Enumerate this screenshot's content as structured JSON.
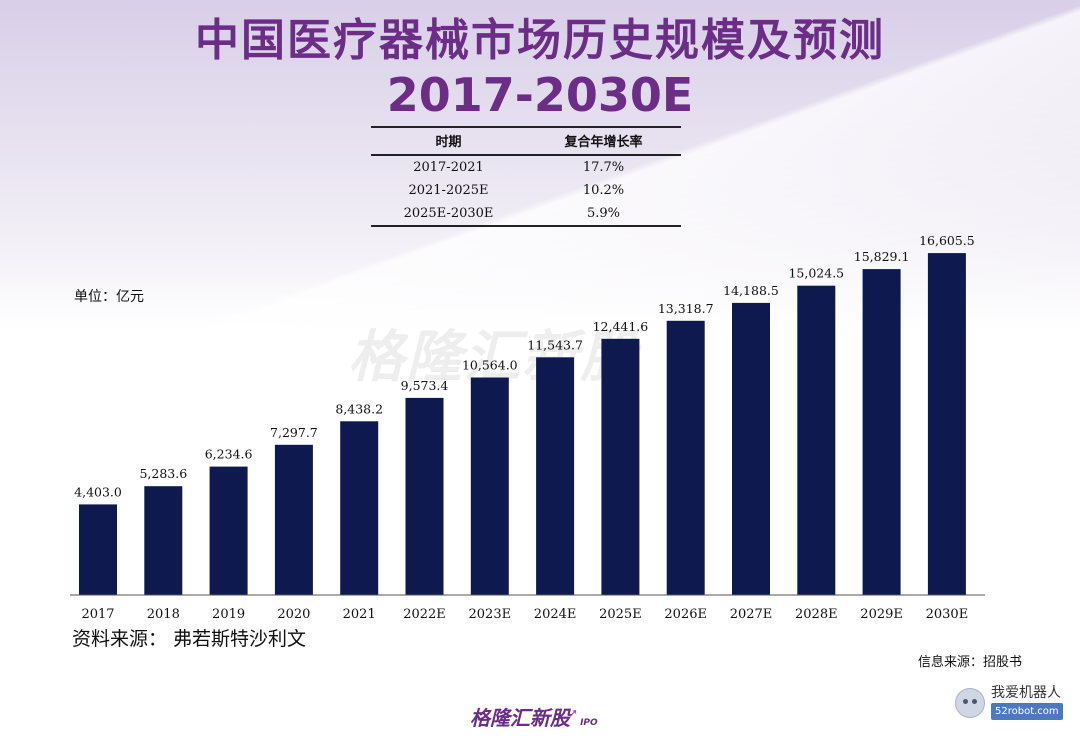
{
  "title": {
    "line1": "中国医疗器械市场历史规模及预测",
    "line2": "2017-2030E"
  },
  "cagr_table": {
    "headers": [
      "时期",
      "复合年增长率"
    ],
    "rows": [
      [
        "2017-2021",
        "17.7%"
      ],
      [
        "2021-2025E",
        "10.2%"
      ],
      [
        "2025E-2030E",
        "5.9%"
      ]
    ]
  },
  "unit_label": "单位：亿元",
  "watermark": "格隆汇新股",
  "source_left": "资料来源：  弗若斯特沙利文",
  "source_right": "信息来源：招股书",
  "brand": {
    "name": "格隆汇新股",
    "suffix": "IPO"
  },
  "robot_badge": {
    "name": "我爱机器人",
    "url": "52robot.com"
  },
  "colors": {
    "bar": "#0e1a4f",
    "title": "#6b2d86",
    "background_tint": "#d8cfe8"
  },
  "chart_data": {
    "type": "bar",
    "categories": [
      "2017",
      "2018",
      "2019",
      "2020",
      "2021",
      "2022E",
      "2023E",
      "2024E",
      "2025E",
      "2026E",
      "2027E",
      "2028E",
      "2029E",
      "2030E"
    ],
    "values": [
      4403.0,
      5283.6,
      6234.6,
      7297.7,
      8438.2,
      9573.4,
      10564.0,
      11543.7,
      12441.6,
      13318.7,
      14188.5,
      15024.5,
      15829.1,
      16605.5
    ],
    "value_labels": [
      "4,403.0",
      "5,283.6",
      "6,234.6",
      "7,297.7",
      "8,438.2",
      "9,573.4",
      "10,564.0",
      "11,543.7",
      "12,441.6",
      "13,318.7",
      "14,188.5",
      "15,024.5",
      "15,829.1",
      "16,605.5"
    ],
    "ylabel": "单位：亿元",
    "ylim": [
      0,
      17000
    ],
    "grid": false,
    "legend": "none"
  }
}
